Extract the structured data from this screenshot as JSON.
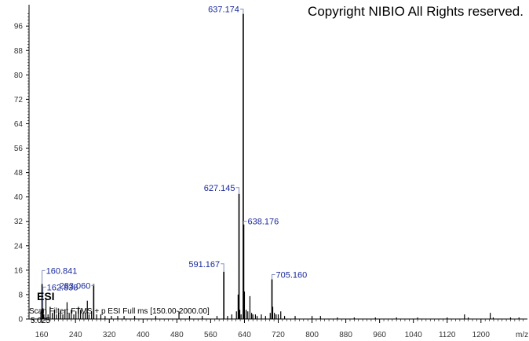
{
  "copyright": "Copyright NIBIO All Rights reserved.",
  "ion_mode_label": "ESI",
  "scan_filter": "Scan Filter: FTMS + p ESI Full ms [150.00-2000.00]",
  "base_intensity_label": "5.025",
  "colors": {
    "axis": "#000000",
    "peaks": "#000000",
    "peak_label": "#1a2a9a",
    "leader": "#7f8fc0"
  },
  "chart_data": {
    "type": "bar",
    "title": "",
    "xlabel": "m/z",
    "ylabel": "",
    "xlim": [
      130,
      1310
    ],
    "ylim": [
      0,
      103
    ],
    "x_ticks": [
      160,
      240,
      320,
      400,
      480,
      560,
      640,
      720,
      800,
      880,
      960,
      1040,
      1120,
      1200
    ],
    "x_tick_labels": [
      "160",
      "240",
      "320",
      "400",
      "480",
      "560",
      "640",
      "720",
      "800",
      "880",
      "960",
      "1040",
      "1120",
      "1200"
    ],
    "y_ticks": [
      0,
      8,
      16,
      24,
      32,
      40,
      48,
      56,
      64,
      72,
      80,
      88,
      96
    ],
    "y_tick_labels": [
      "0",
      "8",
      "16",
      "24",
      "32",
      "40",
      "48",
      "56",
      "64",
      "72",
      "80",
      "88",
      "96"
    ],
    "grid": false,
    "labeled_peaks": [
      {
        "mz": 637.174,
        "intensity": 100,
        "label": "637.174"
      },
      {
        "mz": 627.145,
        "intensity": 41,
        "label": "627.145"
      },
      {
        "mz": 638.176,
        "intensity": 31,
        "label": "638.176"
      },
      {
        "mz": 591.167,
        "intensity": 15.5,
        "label": "591.167"
      },
      {
        "mz": 705.16,
        "intensity": 13,
        "label": "705.160"
      },
      {
        "mz": 160.841,
        "intensity": 11.5,
        "label": "160.841"
      },
      {
        "mz": 162.838,
        "intensity": 3.5,
        "label": "162.838"
      },
      {
        "mz": 283.06,
        "intensity": 11.5,
        "label": "283.060"
      }
    ],
    "other_peaks": [
      [
        158,
        2.5
      ],
      [
        165,
        1.5
      ],
      [
        170,
        7
      ],
      [
        175,
        1.5
      ],
      [
        180,
        4
      ],
      [
        185,
        2
      ],
      [
        190,
        3
      ],
      [
        195,
        1.5
      ],
      [
        200,
        2
      ],
      [
        205,
        2.5
      ],
      [
        210,
        1.5
      ],
      [
        215,
        3
      ],
      [
        220,
        5.5
      ],
      [
        225,
        2
      ],
      [
        230,
        3
      ],
      [
        236,
        1.5
      ],
      [
        241,
        2.5
      ],
      [
        247,
        4
      ],
      [
        252,
        3
      ],
      [
        258,
        2
      ],
      [
        263,
        2
      ],
      [
        268,
        6
      ],
      [
        272,
        1.5
      ],
      [
        278,
        2.5
      ],
      [
        290,
        1.5
      ],
      [
        300,
        1.5
      ],
      [
        310,
        1
      ],
      [
        325,
        1
      ],
      [
        340,
        1
      ],
      [
        355,
        1
      ],
      [
        380,
        1
      ],
      [
        430,
        1
      ],
      [
        485,
        2.5
      ],
      [
        510,
        1
      ],
      [
        540,
        1
      ],
      [
        575,
        1
      ],
      [
        600,
        1
      ],
      [
        610,
        1.5
      ],
      [
        621,
        2.5
      ],
      [
        625,
        8
      ],
      [
        629,
        3
      ],
      [
        632,
        1.5
      ],
      [
        640,
        9
      ],
      [
        644,
        3
      ],
      [
        648,
        2.5
      ],
      [
        653,
        7.5
      ],
      [
        657,
        2
      ],
      [
        660,
        1.5
      ],
      [
        666,
        1.5
      ],
      [
        670,
        1
      ],
      [
        680,
        1.5
      ],
      [
        690,
        1
      ],
      [
        701,
        2
      ],
      [
        707,
        4
      ],
      [
        711,
        2
      ],
      [
        715,
        1.5
      ],
      [
        720,
        1.5
      ],
      [
        726,
        2.5
      ],
      [
        735,
        1
      ],
      [
        760,
        1
      ],
      [
        800,
        1
      ],
      [
        820,
        1
      ],
      [
        860,
        0.5
      ],
      [
        900,
        0.5
      ],
      [
        950,
        0.5
      ],
      [
        1000,
        0.5
      ],
      [
        1050,
        0.5
      ],
      [
        1120,
        0.5
      ],
      [
        1161,
        1.5
      ],
      [
        1170,
        0.5
      ],
      [
        1222,
        2
      ],
      [
        1229,
        0.5
      ],
      [
        1270,
        0.5
      ],
      [
        1290,
        0.5
      ]
    ]
  }
}
